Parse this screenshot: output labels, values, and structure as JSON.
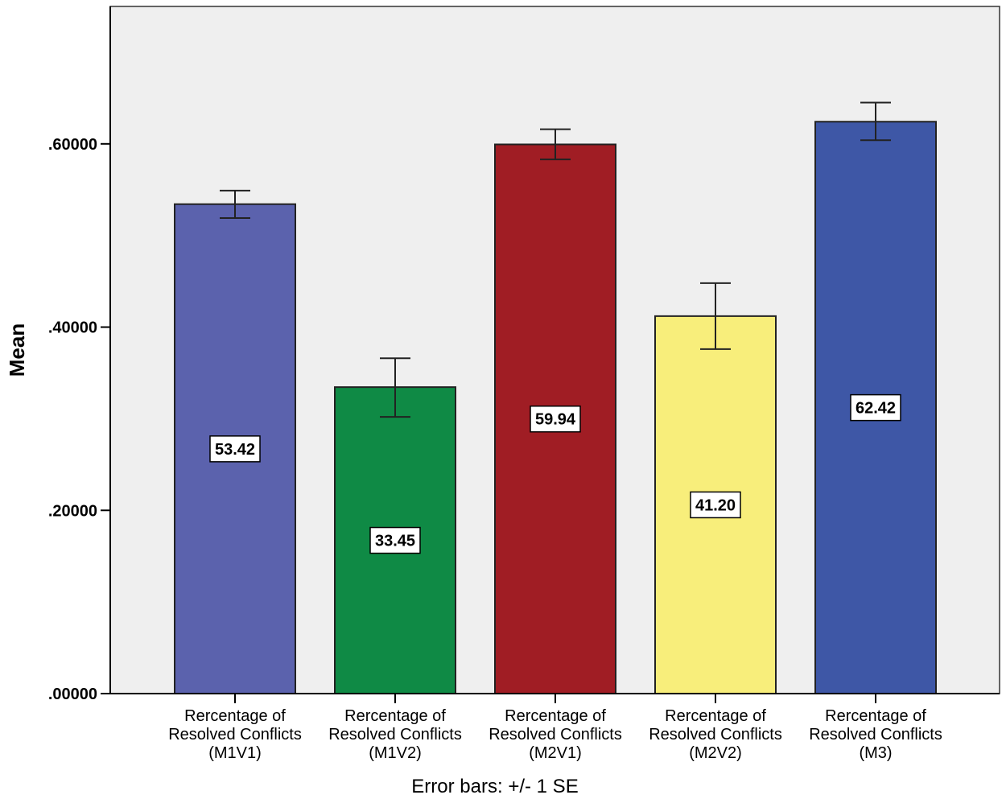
{
  "chart_data": {
    "type": "bar",
    "ylabel": "Mean",
    "xlabel": "",
    "ylim": [
      0,
      0.75
    ],
    "yticks": [
      ".00000",
      ".20000",
      ".40000",
      ".60000"
    ],
    "ytick_values": [
      0,
      0.2,
      0.4,
      0.6
    ],
    "grid": false,
    "footnote": "Error bars: +/- 1 SE",
    "categories": [
      [
        "Rercentage of",
        "Resolved Conflicts",
        "(M1V1)"
      ],
      [
        "Rercentage of",
        "Resolved Conflicts",
        "(M1V2)"
      ],
      [
        "Rercentage of",
        "Resolved Conflicts",
        "(M2V1)"
      ],
      [
        "Rercentage of",
        "Resolved Conflicts",
        "(M2V2)"
      ],
      [
        "Rercentage of",
        "Resolved Conflicts",
        "(M3)"
      ]
    ],
    "values": [
      0.5342,
      0.3345,
      0.5994,
      0.412,
      0.6242
    ],
    "data_labels": [
      "53.42",
      "33.45",
      "59.94",
      "41.20",
      "62.42"
    ],
    "error_low": [
      0.519,
      0.302,
      0.583,
      0.376,
      0.604
    ],
    "error_high": [
      0.549,
      0.366,
      0.616,
      0.448,
      0.645
    ],
    "colors": [
      "#5b62ad",
      "#0f8a45",
      "#a01d24",
      "#f8ee7b",
      "#3e57a6"
    ],
    "plot_background": "#efefef"
  }
}
